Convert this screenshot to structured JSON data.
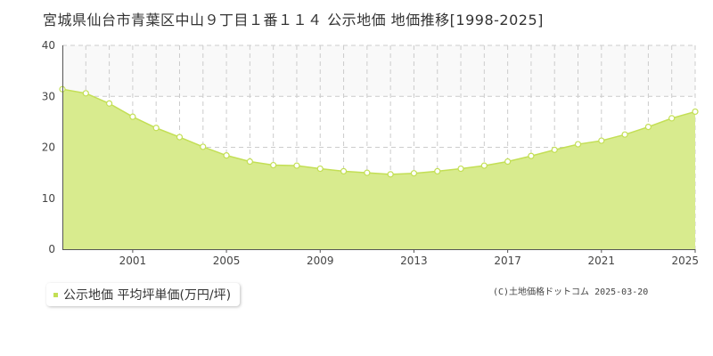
{
  "title": "宮城県仙台市青葉区中山９丁目１番１１４ 公示地価 地価推移[1998-2025]",
  "colors": {
    "area_fill": "#d8eb8e",
    "line": "#c3df55",
    "point_fill": "#ffffff",
    "grid": "#cccccc",
    "band": "#f9f9f9"
  },
  "chart_data": {
    "type": "area",
    "x": [
      1998,
      1999,
      2000,
      2001,
      2002,
      2003,
      2004,
      2005,
      2006,
      2007,
      2008,
      2009,
      2010,
      2011,
      2012,
      2013,
      2014,
      2015,
      2016,
      2017,
      2018,
      2019,
      2020,
      2021,
      2022,
      2023,
      2024,
      2025
    ],
    "series": [
      {
        "name": "公示地価 平均坪単価(万円/坪)",
        "values": [
          31.4,
          30.6,
          28.6,
          26.0,
          23.8,
          22.0,
          20.1,
          18.4,
          17.2,
          16.5,
          16.4,
          15.8,
          15.3,
          15.0,
          14.7,
          14.9,
          15.3,
          15.8,
          16.4,
          17.2,
          18.3,
          19.5,
          20.6,
          21.3,
          22.5,
          24.0,
          25.7,
          27.0
        ]
      }
    ],
    "x_tick_labels": [
      "2001",
      "2005",
      "2009",
      "2013",
      "2017",
      "2021",
      "2025"
    ],
    "y_tick_labels": [
      "0",
      "10",
      "20",
      "30",
      "40"
    ],
    "xlim": [
      1998,
      2025
    ],
    "ylim": [
      0,
      40
    ],
    "xlabel": "",
    "ylabel": "",
    "grid": true,
    "legend_position": "bottom-left"
  },
  "legend": {
    "label": "公示地価 平均坪単価(万円/坪)"
  },
  "copyright": "(C)土地価格ドットコム 2025-03-20"
}
